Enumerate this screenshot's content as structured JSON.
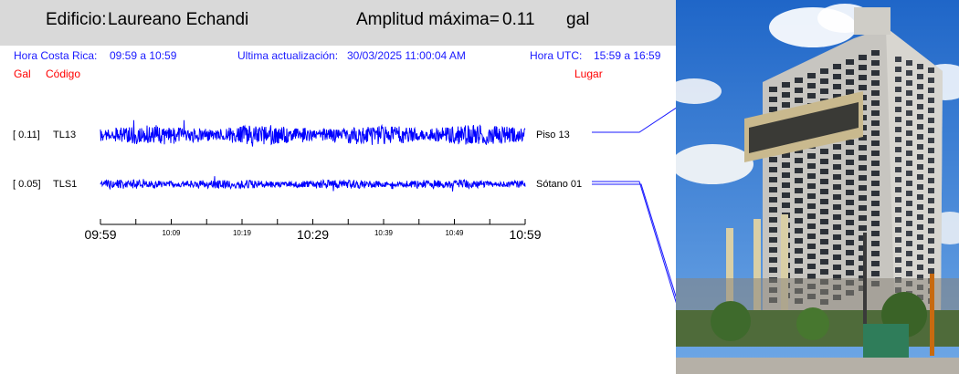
{
  "header": {
    "building_label": "Edificio:",
    "building_name": "Laureano Echandi",
    "amplitude_label": "Amplitud máxima=",
    "amplitude_value": "0.11",
    "amplitude_unit": "gal"
  },
  "info": {
    "local_time_label": "Hora Costa Rica:",
    "local_time_range": "09:59 a 10:59",
    "update_label": "Ultima actualización:",
    "update_value": "30/03/2025 11:00:04 AM",
    "utc_label": "Hora UTC:",
    "utc_range": "15:59 a 16:59"
  },
  "columns": {
    "gal": "Gal",
    "code": "Código",
    "place": "Lugar"
  },
  "traces": [
    {
      "amplitude": "[   0.11]",
      "code": "TL13",
      "place": "Piso 13",
      "peak": 0.11
    },
    {
      "amplitude": "[   0.05]",
      "code": "TLS1",
      "place": "Sótano 01",
      "peak": 0.05
    }
  ],
  "time_axis": {
    "major": [
      "09:59",
      "10:29",
      "10:59"
    ],
    "minor": [
      "10:09",
      "10:19",
      "10:39",
      "10:49"
    ]
  },
  "colors": {
    "trace": "#0000ff",
    "header_bg": "#d9d9d9",
    "info_blue": "#1a1aff",
    "label_red": "#ff0000"
  }
}
